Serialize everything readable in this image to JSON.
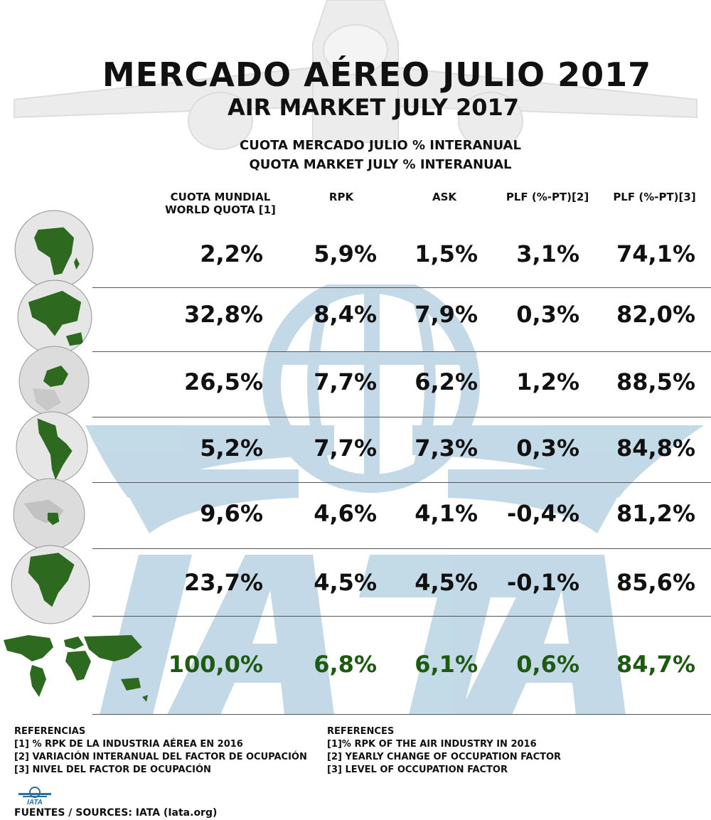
{
  "title": "MERCADO AÉREO JULIO 2017",
  "subtitle": "AIR MARKET JULY 2017",
  "caption_es": "CUOTA MERCADO JULIO % INTERANUAL",
  "caption_en": "QUOTA MARKET JULY % INTERANUAL",
  "columns": {
    "quota_es": "CUOTA MUNDIAL",
    "quota_en": "WORLD QUOTA [1]",
    "rpk": "RPK",
    "ask": "ASK",
    "plf_change": "PLF (%-PT)[2]",
    "plf_level": "PLF (%-PT)[3]"
  },
  "rows": [
    {
      "region": "africa",
      "quota": "2,2%",
      "rpk": "5,9%",
      "ask": "1,5%",
      "plf_change": "3,1%",
      "plf_level": "74,1%"
    },
    {
      "region": "asia-pacific",
      "quota": "32,8%",
      "rpk": "8,4%",
      "ask": "7,9%",
      "plf_change": "0,3%",
      "plf_level": "82,0%"
    },
    {
      "region": "europe",
      "quota": "26,5%",
      "rpk": "7,7%",
      "ask": "6,2%",
      "plf_change": "1,2%",
      "plf_level": "88,5%"
    },
    {
      "region": "latin-america",
      "quota": "5,2%",
      "rpk": "7,7%",
      "ask": "7,3%",
      "plf_change": "0,3%",
      "plf_level": "84,8%"
    },
    {
      "region": "middle-east",
      "quota": "9,6%",
      "rpk": "4,6%",
      "ask": "4,1%",
      "plf_change": "-0,4%",
      "plf_level": "81,2%"
    },
    {
      "region": "north-america",
      "quota": "23,7%",
      "rpk": "4,5%",
      "ask": "4,5%",
      "plf_change": "-0,1%",
      "plf_level": "85,6%"
    },
    {
      "region": "world",
      "quota": "100,0%",
      "rpk": "6,8%",
      "ask": "6,1%",
      "plf_change": "0,6%",
      "plf_level": "84,7%"
    }
  ],
  "references_es": {
    "heading": "REFERENCIAS",
    "items": [
      "[1] % RPK DE LA INDUSTRIA AÉREA EN 2016",
      "[2] VARIACIÓN INTERANUAL DEL FACTOR DE OCUPACIÓN",
      "[3]  NIVEL DEL FACTOR DE OCUPACIÓN"
    ]
  },
  "references_en": {
    "heading": "REFERENCES",
    "items": [
      "[1]% RPK OF THE AIR INDUSTRY IN 2016",
      "[2] YEARLY CHANGE OF OCCUPATION FACTOR",
      "[3] LEVEL OF OCCUPATION FACTOR"
    ]
  },
  "logo_text": "IATA",
  "sources": "FUENTES / SOURCES: IATA (Iata.org)",
  "colors": {
    "text": "#111111",
    "world_total": "#1f5a12",
    "watermark": "#b9d3e3",
    "globe_land": "#2d6a1f",
    "globe_sea": "#e6e6e6"
  }
}
